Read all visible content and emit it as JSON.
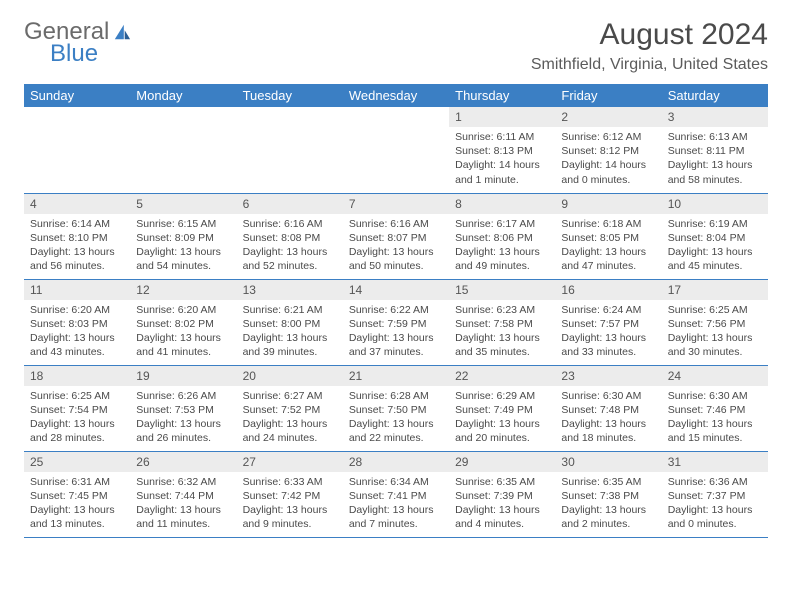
{
  "brand": {
    "part1": "General",
    "part2": "Blue",
    "accent": "#3b7fc4",
    "text_color": "#6b6b6b"
  },
  "title": "August 2024",
  "location": "Smithfield, Virginia, United States",
  "colors": {
    "header_bg": "#3b7fc4",
    "header_fg": "#ffffff",
    "daynum_bg": "#ececec",
    "rule": "#3b7fc4"
  },
  "weekday_labels": [
    "Sunday",
    "Monday",
    "Tuesday",
    "Wednesday",
    "Thursday",
    "Friday",
    "Saturday"
  ],
  "first_weekday_index": 4,
  "days": [
    {
      "n": 1,
      "sunrise": "6:11 AM",
      "sunset": "8:13 PM",
      "daylight": "14 hours and 1 minute."
    },
    {
      "n": 2,
      "sunrise": "6:12 AM",
      "sunset": "8:12 PM",
      "daylight": "14 hours and 0 minutes."
    },
    {
      "n": 3,
      "sunrise": "6:13 AM",
      "sunset": "8:11 PM",
      "daylight": "13 hours and 58 minutes."
    },
    {
      "n": 4,
      "sunrise": "6:14 AM",
      "sunset": "8:10 PM",
      "daylight": "13 hours and 56 minutes."
    },
    {
      "n": 5,
      "sunrise": "6:15 AM",
      "sunset": "8:09 PM",
      "daylight": "13 hours and 54 minutes."
    },
    {
      "n": 6,
      "sunrise": "6:16 AM",
      "sunset": "8:08 PM",
      "daylight": "13 hours and 52 minutes."
    },
    {
      "n": 7,
      "sunrise": "6:16 AM",
      "sunset": "8:07 PM",
      "daylight": "13 hours and 50 minutes."
    },
    {
      "n": 8,
      "sunrise": "6:17 AM",
      "sunset": "8:06 PM",
      "daylight": "13 hours and 49 minutes."
    },
    {
      "n": 9,
      "sunrise": "6:18 AM",
      "sunset": "8:05 PM",
      "daylight": "13 hours and 47 minutes."
    },
    {
      "n": 10,
      "sunrise": "6:19 AM",
      "sunset": "8:04 PM",
      "daylight": "13 hours and 45 minutes."
    },
    {
      "n": 11,
      "sunrise": "6:20 AM",
      "sunset": "8:03 PM",
      "daylight": "13 hours and 43 minutes."
    },
    {
      "n": 12,
      "sunrise": "6:20 AM",
      "sunset": "8:02 PM",
      "daylight": "13 hours and 41 minutes."
    },
    {
      "n": 13,
      "sunrise": "6:21 AM",
      "sunset": "8:00 PM",
      "daylight": "13 hours and 39 minutes."
    },
    {
      "n": 14,
      "sunrise": "6:22 AM",
      "sunset": "7:59 PM",
      "daylight": "13 hours and 37 minutes."
    },
    {
      "n": 15,
      "sunrise": "6:23 AM",
      "sunset": "7:58 PM",
      "daylight": "13 hours and 35 minutes."
    },
    {
      "n": 16,
      "sunrise": "6:24 AM",
      "sunset": "7:57 PM",
      "daylight": "13 hours and 33 minutes."
    },
    {
      "n": 17,
      "sunrise": "6:25 AM",
      "sunset": "7:56 PM",
      "daylight": "13 hours and 30 minutes."
    },
    {
      "n": 18,
      "sunrise": "6:25 AM",
      "sunset": "7:54 PM",
      "daylight": "13 hours and 28 minutes."
    },
    {
      "n": 19,
      "sunrise": "6:26 AM",
      "sunset": "7:53 PM",
      "daylight": "13 hours and 26 minutes."
    },
    {
      "n": 20,
      "sunrise": "6:27 AM",
      "sunset": "7:52 PM",
      "daylight": "13 hours and 24 minutes."
    },
    {
      "n": 21,
      "sunrise": "6:28 AM",
      "sunset": "7:50 PM",
      "daylight": "13 hours and 22 minutes."
    },
    {
      "n": 22,
      "sunrise": "6:29 AM",
      "sunset": "7:49 PM",
      "daylight": "13 hours and 20 minutes."
    },
    {
      "n": 23,
      "sunrise": "6:30 AM",
      "sunset": "7:48 PM",
      "daylight": "13 hours and 18 minutes."
    },
    {
      "n": 24,
      "sunrise": "6:30 AM",
      "sunset": "7:46 PM",
      "daylight": "13 hours and 15 minutes."
    },
    {
      "n": 25,
      "sunrise": "6:31 AM",
      "sunset": "7:45 PM",
      "daylight": "13 hours and 13 minutes."
    },
    {
      "n": 26,
      "sunrise": "6:32 AM",
      "sunset": "7:44 PM",
      "daylight": "13 hours and 11 minutes."
    },
    {
      "n": 27,
      "sunrise": "6:33 AM",
      "sunset": "7:42 PM",
      "daylight": "13 hours and 9 minutes."
    },
    {
      "n": 28,
      "sunrise": "6:34 AM",
      "sunset": "7:41 PM",
      "daylight": "13 hours and 7 minutes."
    },
    {
      "n": 29,
      "sunrise": "6:35 AM",
      "sunset": "7:39 PM",
      "daylight": "13 hours and 4 minutes."
    },
    {
      "n": 30,
      "sunrise": "6:35 AM",
      "sunset": "7:38 PM",
      "daylight": "13 hours and 2 minutes."
    },
    {
      "n": 31,
      "sunrise": "6:36 AM",
      "sunset": "7:37 PM",
      "daylight": "13 hours and 0 minutes."
    }
  ],
  "labels": {
    "sunrise": "Sunrise:",
    "sunset": "Sunset:",
    "daylight": "Daylight:"
  }
}
